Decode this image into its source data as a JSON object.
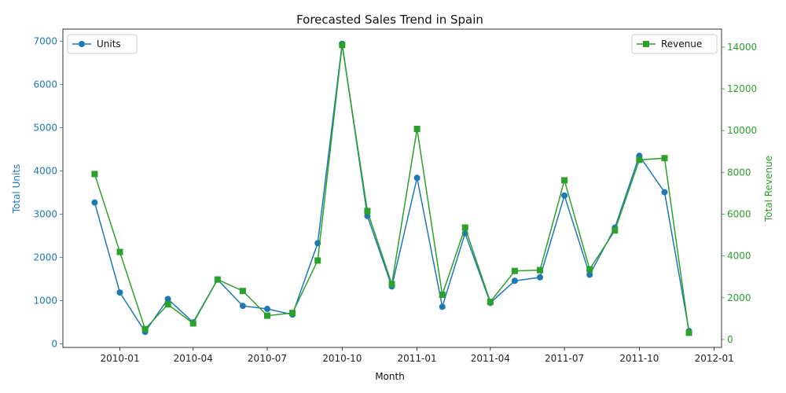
{
  "chart_data": {
    "type": "line",
    "title": "Forecasted Sales Trend in Spain",
    "xlabel": "Month",
    "ylabel_left": "Total Units",
    "ylabel_right": "Total Revenue",
    "x": [
      "2009-12-01",
      "2010-01-01",
      "2010-02-01",
      "2010-03-01",
      "2010-04-01",
      "2010-05-01",
      "2010-06-01",
      "2010-07-01",
      "2010-08-01",
      "2010-09-01",
      "2010-10-01",
      "2010-11-01",
      "2010-12-01",
      "2011-01-01",
      "2011-02-01",
      "2011-03-01",
      "2011-04-01",
      "2011-05-01",
      "2011-06-01",
      "2011-07-01",
      "2011-08-01",
      "2011-09-01",
      "2011-10-01",
      "2011-11-01",
      "2011-12-01"
    ],
    "xticks": [
      "2010-01",
      "2010-04",
      "2010-07",
      "2010-10",
      "2011-01",
      "2011-04",
      "2011-07",
      "2011-10",
      "2012-01"
    ],
    "xlim": [
      "2009-10-23",
      "2012-01-10"
    ],
    "series": [
      {
        "name": "Units",
        "axis": "left",
        "color": "#1f77b4",
        "marker": "circle",
        "values": [
          3270,
          1190,
          280,
          1040,
          500,
          1490,
          880,
          810,
          680,
          2330,
          6940,
          2960,
          1330,
          3840,
          860,
          2560,
          950,
          1460,
          1540,
          3430,
          1600,
          2690,
          4350,
          3510,
          300
        ]
      },
      {
        "name": "Revenue",
        "axis": "right",
        "color": "#2ca02c",
        "marker": "square",
        "values": [
          7920,
          4190,
          500,
          1680,
          770,
          2870,
          2320,
          1140,
          1270,
          3780,
          14100,
          6150,
          2650,
          10080,
          2140,
          5360,
          1800,
          3280,
          3320,
          7620,
          3360,
          5220,
          8600,
          8680,
          320
        ]
      }
    ],
    "ylim_left": [
      -80,
      7280
    ],
    "yticks_left": [
      0,
      1000,
      2000,
      3000,
      4000,
      5000,
      6000,
      7000
    ],
    "ylim_right": [
      -380,
      14860
    ],
    "yticks_right": [
      0,
      2000,
      4000,
      6000,
      8000,
      10000,
      12000,
      14000
    ],
    "legend_left_position": "top-left",
    "legend_right_position": "top-right",
    "grid": false
  }
}
